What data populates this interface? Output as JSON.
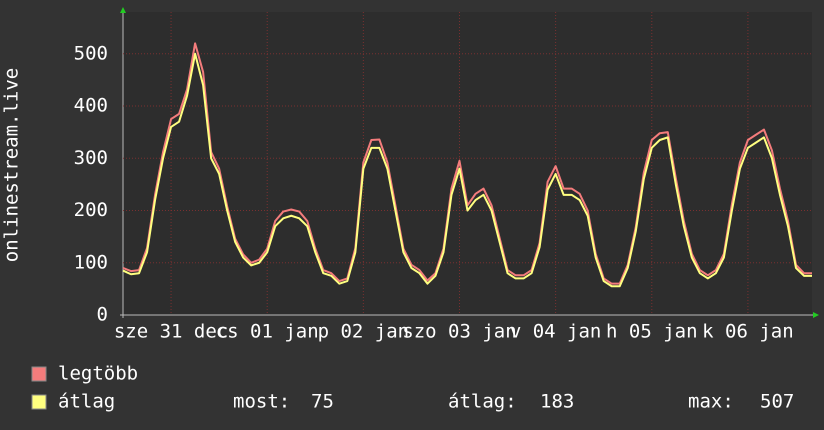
{
  "chart_data": {
    "type": "line",
    "y_label": "onlinestream.live",
    "x": [
      0,
      2,
      4,
      6,
      8,
      10,
      12,
      14,
      16,
      18,
      20,
      22,
      24,
      26,
      28,
      30,
      32,
      34,
      36,
      38,
      40,
      42,
      44,
      46,
      48,
      50,
      52,
      54,
      56,
      58,
      60,
      62,
      64,
      66,
      68,
      70,
      72,
      74,
      76,
      78,
      80,
      82,
      84,
      86,
      88,
      90,
      92,
      94,
      96,
      98,
      100,
      102,
      104,
      106,
      108,
      110,
      112,
      114,
      116,
      118,
      120,
      122,
      124,
      126,
      128,
      130,
      132,
      134,
      136,
      138,
      140,
      142,
      144,
      146,
      148,
      150,
      152,
      154,
      156,
      158,
      160,
      162,
      164,
      166,
      168,
      170,
      172
    ],
    "xlim": [
      0,
      172
    ],
    "xticks": [
      {
        "value": 12,
        "label": "sze 31 dec"
      },
      {
        "value": 36,
        "label": "cs 01 jan"
      },
      {
        "value": 60,
        "label": "p 02 jan"
      },
      {
        "value": 84,
        "label": "szo 03 jan"
      },
      {
        "value": 108,
        "label": "v 04 jan"
      },
      {
        "value": 132,
        "label": "h 05 jan"
      },
      {
        "value": 156,
        "label": "k 06 jan"
      }
    ],
    "ylim": [
      0,
      580
    ],
    "yticks": [
      0,
      100,
      200,
      300,
      400,
      500
    ],
    "grid": true,
    "series": [
      {
        "name": "legtöbb",
        "color": "#f47c7c",
        "values": [
          90,
          84,
          86,
          128,
          230,
          312,
          375,
          385,
          432,
          520,
          465,
          312,
          280,
          208,
          146,
          116,
          100,
          106,
          127,
          180,
          198,
          202,
          198,
          180,
          127,
          86,
          80,
          65,
          70,
          128,
          292,
          335,
          336,
          292,
          210,
          127,
          96,
          86,
          66,
          80,
          127,
          242,
          295,
          210,
          232,
          242,
          210,
          148,
          86,
          76,
          76,
          86,
          138,
          255,
          285,
          242,
          242,
          232,
          200,
          117,
          70,
          60,
          60,
          96,
          168,
          272,
          335,
          348,
          350,
          262,
          180,
          117,
          86,
          76,
          86,
          117,
          212,
          292,
          335,
          345,
          355,
          315,
          242,
          180,
          96,
          80,
          80
        ]
      },
      {
        "name": "átlag",
        "color": "#ffff80",
        "values": [
          85,
          78,
          80,
          120,
          220,
          300,
          360,
          370,
          420,
          500,
          440,
          300,
          270,
          200,
          140,
          110,
          95,
          100,
          120,
          170,
          185,
          190,
          185,
          170,
          120,
          80,
          75,
          60,
          65,
          120,
          280,
          320,
          320,
          280,
          200,
          120,
          90,
          80,
          60,
          75,
          120,
          230,
          280,
          200,
          220,
          230,
          200,
          140,
          80,
          70,
          70,
          80,
          130,
          240,
          270,
          230,
          230,
          220,
          190,
          110,
          65,
          55,
          55,
          90,
          160,
          260,
          320,
          335,
          340,
          250,
          170,
          110,
          80,
          70,
          80,
          110,
          200,
          280,
          320,
          330,
          340,
          300,
          230,
          170,
          90,
          75,
          75
        ]
      }
    ],
    "stats": [
      {
        "label": "most:",
        "value": 75
      },
      {
        "label": "átlag:",
        "value": 183
      },
      {
        "label": "max:",
        "value": 507
      }
    ]
  }
}
